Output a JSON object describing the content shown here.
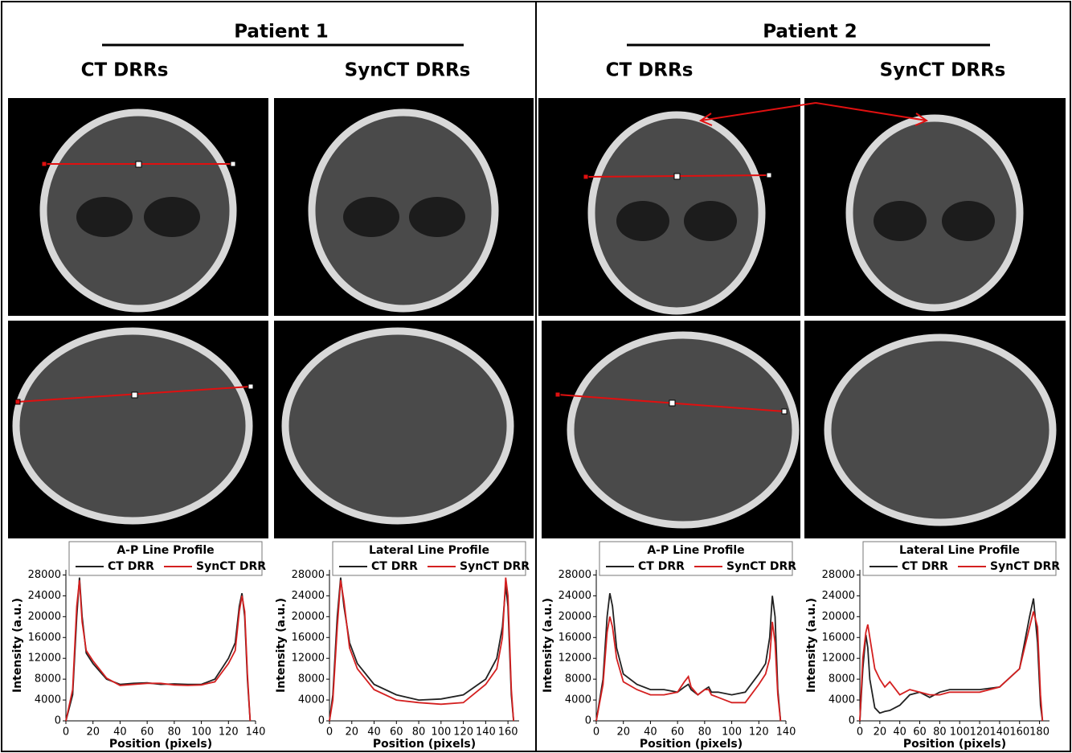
{
  "header": {
    "groups": [
      {
        "title": "Patient 1",
        "columns": [
          "CT DRRs",
          "SynCT DRRs"
        ]
      },
      {
        "title": "Patient 2",
        "columns": [
          "CT DRRs",
          "SynCT DRRs"
        ]
      }
    ]
  },
  "chart_data": [
    {
      "type": "line",
      "title": "A-P Line Profile",
      "x_label": "Position (pixels)",
      "y_label": "Intensity (a.u.)",
      "x": [
        0,
        5,
        8,
        10,
        12,
        15,
        20,
        30,
        40,
        50,
        60,
        70,
        80,
        90,
        100,
        110,
        120,
        125,
        128,
        130,
        132,
        134,
        136
      ],
      "series": [
        {
          "name": "CT DRR",
          "color": "#222222",
          "values": [
            0,
            5000,
            20000,
            27500,
            20000,
            13000,
            11000,
            8000,
            7000,
            7200,
            7300,
            7000,
            7100,
            7000,
            7000,
            8000,
            12000,
            15000,
            22000,
            24500,
            20000,
            8000,
            0
          ]
        },
        {
          "name": "SynCT DRR",
          "color": "#d42020",
          "values": [
            0,
            6000,
            22000,
            27000,
            19000,
            13500,
            11500,
            8200,
            6800,
            7000,
            7200,
            7200,
            6900,
            6800,
            6900,
            7500,
            11000,
            13500,
            21000,
            24000,
            21000,
            9000,
            0
          ]
        }
      ],
      "xlim": [
        0,
        140
      ],
      "xticks": [
        0,
        20,
        40,
        60,
        80,
        100,
        120,
        140
      ],
      "ylim": [
        0,
        29000
      ],
      "yticks": [
        0,
        4000,
        8000,
        12000,
        16000,
        20000,
        24000,
        28000
      ]
    },
    {
      "type": "line",
      "title": "Lateral Line Profile",
      "x_label": "Position (pixels)",
      "y_label": "Intensity (a.u.)",
      "x": [
        0,
        3,
        7,
        10,
        13,
        18,
        25,
        40,
        60,
        80,
        100,
        120,
        140,
        150,
        155,
        158,
        160,
        163,
        165
      ],
      "series": [
        {
          "name": "CT DRR",
          "color": "#222222",
          "values": [
            0,
            5000,
            20000,
            27500,
            22000,
            15000,
            11000,
            7000,
            5000,
            4000,
            4200,
            5000,
            8000,
            12000,
            18000,
            26000,
            22000,
            5000,
            0
          ]
        },
        {
          "name": "SynCT DRR",
          "color": "#d42020",
          "values": [
            0,
            4000,
            18000,
            27000,
            23000,
            14000,
            10000,
            6000,
            4000,
            3500,
            3200,
            3500,
            7000,
            10000,
            16000,
            27500,
            24000,
            6000,
            0
          ]
        }
      ],
      "xlim": [
        0,
        170
      ],
      "xticks": [
        0,
        20,
        40,
        60,
        80,
        100,
        120,
        140,
        160
      ],
      "ylim": [
        0,
        29000
      ],
      "yticks": [
        0,
        4000,
        8000,
        12000,
        16000,
        20000,
        24000,
        28000
      ]
    },
    {
      "type": "line",
      "title": "A-P Line Profile",
      "x_label": "Position (pixels)",
      "y_label": "Intensity (a.u.)",
      "x": [
        0,
        5,
        8,
        10,
        12,
        15,
        20,
        30,
        40,
        50,
        60,
        65,
        68,
        70,
        75,
        80,
        83,
        85,
        90,
        100,
        110,
        120,
        125,
        128,
        130,
        132,
        134,
        136
      ],
      "series": [
        {
          "name": "CT DRR",
          "color": "#222222",
          "values": [
            0,
            8000,
            20000,
            24500,
            22000,
            14000,
            9000,
            7000,
            6000,
            6000,
            5500,
            6500,
            7000,
            6000,
            5000,
            6000,
            6500,
            5500,
            5500,
            5000,
            5500,
            9000,
            11000,
            16000,
            24000,
            20000,
            6000,
            0
          ]
        },
        {
          "name": "SynCT DRR",
          "color": "#d42020",
          "values": [
            0,
            7000,
            17000,
            20000,
            18000,
            12000,
            7500,
            6000,
            5000,
            5000,
            5500,
            7500,
            8500,
            6500,
            5000,
            6000,
            6000,
            5000,
            4500,
            3500,
            3500,
            7000,
            9000,
            12000,
            19000,
            15000,
            5000,
            0
          ]
        }
      ],
      "xlim": [
        0,
        140
      ],
      "xticks": [
        0,
        20,
        40,
        60,
        80,
        100,
        120,
        140
      ],
      "ylim": [
        0,
        29000
      ],
      "yticks": [
        0,
        4000,
        8000,
        12000,
        16000,
        20000,
        24000,
        28000
      ]
    },
    {
      "type": "line",
      "title": "Lateral Line Profile",
      "x_label": "Position (pixels)",
      "y_label": "Intensity (a.u.)",
      "x": [
        0,
        3,
        6,
        8,
        10,
        15,
        20,
        25,
        30,
        40,
        50,
        60,
        70,
        80,
        90,
        100,
        120,
        140,
        160,
        170,
        174,
        178,
        181,
        183
      ],
      "series": [
        {
          "name": "CT DRR",
          "color": "#222222",
          "values": [
            0,
            10000,
            16500,
            14000,
            8000,
            2500,
            1500,
            1800,
            2000,
            3000,
            5000,
            5500,
            4500,
            5500,
            6000,
            6000,
            6000,
            6500,
            10000,
            20000,
            23500,
            15000,
            3000,
            0
          ]
        },
        {
          "name": "SynCT DRR",
          "color": "#d42020",
          "values": [
            0,
            12000,
            17000,
            18500,
            16000,
            10000,
            8000,
            6500,
            7500,
            5000,
            6000,
            5500,
            5000,
            5000,
            5500,
            5500,
            5500,
            6500,
            10000,
            18000,
            21000,
            18000,
            5000,
            0
          ]
        }
      ],
      "xlim": [
        0,
        190
      ],
      "xticks": [
        0,
        20,
        40,
        60,
        80,
        100,
        120,
        140,
        160,
        180
      ],
      "ylim": [
        0,
        29000
      ],
      "yticks": [
        0,
        4000,
        8000,
        12000,
        16000,
        20000,
        24000,
        28000
      ]
    }
  ]
}
